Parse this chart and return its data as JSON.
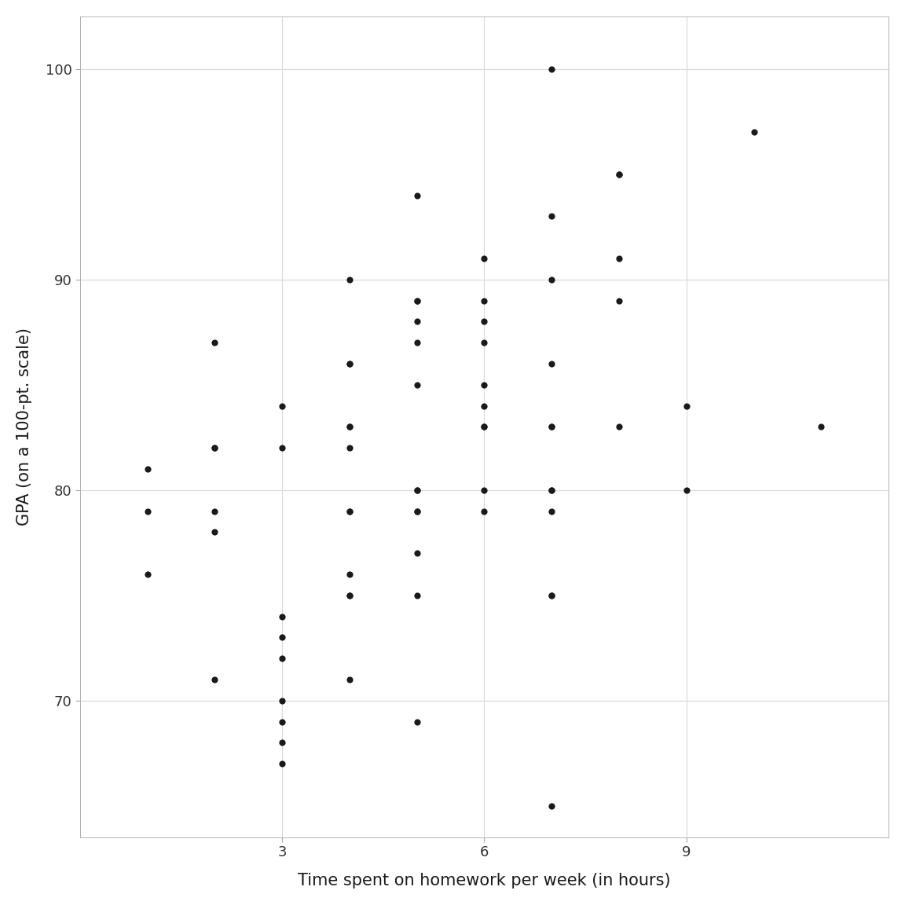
{
  "x": [
    1,
    1,
    1,
    2,
    2,
    2,
    2,
    2,
    2,
    3,
    3,
    3,
    3,
    3,
    3,
    3,
    3,
    3,
    4,
    4,
    4,
    4,
    4,
    4,
    4,
    4,
    4,
    4,
    4,
    4,
    5,
    5,
    5,
    5,
    5,
    5,
    5,
    5,
    5,
    5,
    5,
    5,
    5,
    6,
    6,
    6,
    6,
    6,
    6,
    6,
    6,
    6,
    6,
    7,
    7,
    7,
    7,
    7,
    7,
    7,
    7,
    7,
    7,
    7,
    7,
    8,
    8,
    8,
    8,
    8,
    9,
    9,
    10,
    11
  ],
  "y": [
    79,
    76,
    81,
    87,
    79,
    78,
    82,
    82,
    71,
    84,
    82,
    72,
    74,
    73,
    70,
    67,
    69,
    68,
    86,
    86,
    90,
    83,
    83,
    82,
    79,
    79,
    76,
    75,
    75,
    71,
    94,
    89,
    89,
    88,
    87,
    85,
    80,
    80,
    79,
    79,
    77,
    75,
    69,
    91,
    89,
    88,
    87,
    85,
    84,
    83,
    83,
    80,
    79,
    100,
    93,
    90,
    86,
    83,
    83,
    80,
    80,
    79,
    75,
    75,
    65,
    95,
    95,
    91,
    89,
    83,
    84,
    80,
    97,
    83
  ],
  "xlabel": "Time spent on homework per week (in hours)",
  "ylabel": "GPA (on a 100-pt. scale)",
  "xlim": [
    0.2,
    11.8
  ],
  "ylim": [
    63.5,
    102.5
  ],
  "xticks": [
    3,
    6,
    9
  ],
  "yticks": [
    70,
    80,
    90,
    100
  ],
  "grid_xticks": [
    0,
    3,
    6,
    9,
    12
  ],
  "grid_yticks": [
    70,
    80,
    90,
    100
  ],
  "grid_color": "#d9d9d9",
  "dot_color": "#1a1a1a",
  "dot_size": 35,
  "bg_color": "#ffffff",
  "panel_bg": "#ffffff",
  "label_fontsize": 15,
  "tick_fontsize": 13
}
